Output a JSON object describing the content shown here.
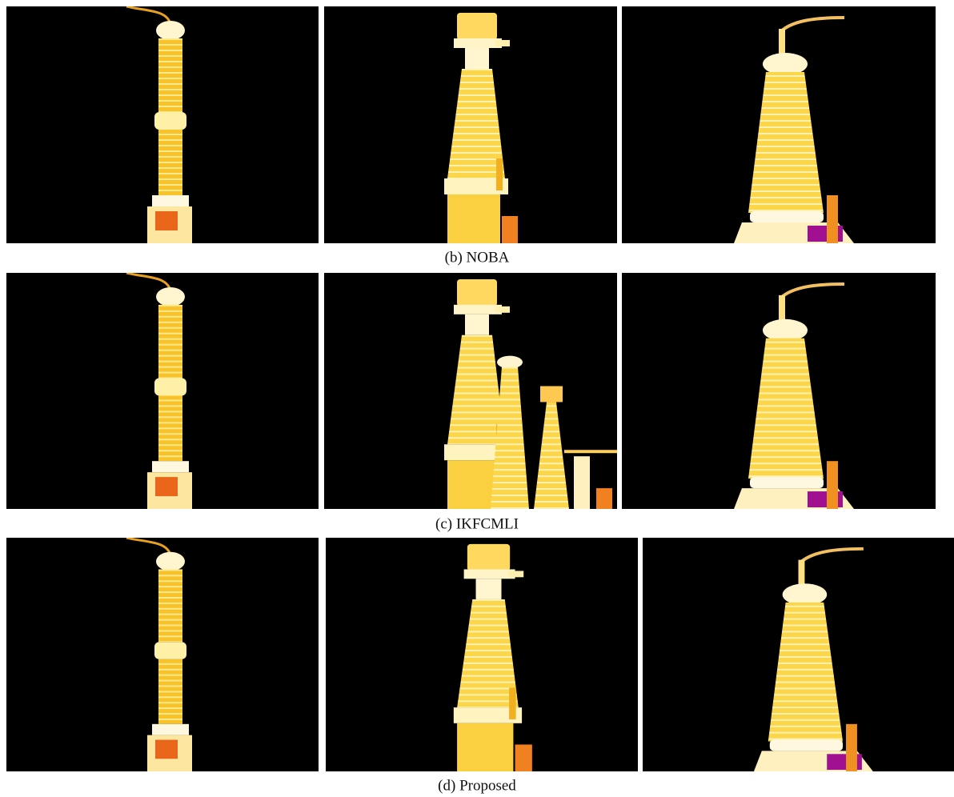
{
  "figure": {
    "rows": [
      {
        "caption": "(b) NOBA"
      },
      {
        "caption": "(c) IKFCMLI"
      },
      {
        "caption": "(d) Proposed"
      }
    ]
  }
}
